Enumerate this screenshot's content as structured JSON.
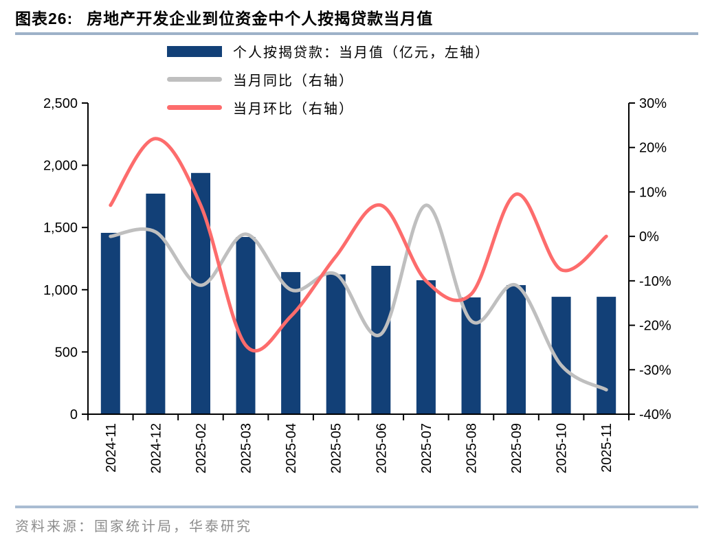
{
  "figure": {
    "number_label": "图表26:",
    "title": "房地产开发企业到位资金中个人按揭贷款当月值"
  },
  "legend": {
    "position": "top",
    "items": [
      {
        "label": "个人按揭贷款：当月值（亿元，左轴）",
        "type": "bar",
        "color": "#124077"
      },
      {
        "label": "当月同比（右轴）",
        "type": "line",
        "color": "#BFBFBF"
      },
      {
        "label": "当月环比（右轴）",
        "type": "line",
        "color": "#FD6C6C"
      }
    ]
  },
  "source": {
    "text": "资料来源：国家统计局，华泰研究"
  },
  "colors": {
    "bar": "#124077",
    "yoy_line": "#BFBFBF",
    "mom_line": "#FD6C6C",
    "axis": "#000000",
    "title_rule": "#9DB1C8",
    "footer_rule": "#A9BCD2",
    "source_text": "#8C8C8C"
  },
  "chart_data": {
    "type": "bar",
    "subtype": "combo-bar-line",
    "title": "房地产开发企业到位资金中个人按揭贷款当月值",
    "categories": [
      "2024-11",
      "2024-12",
      "2025-02",
      "2025-03",
      "2025-04",
      "2025-05",
      "2025-06",
      "2025-07",
      "2025-08",
      "2025-09",
      "2025-10",
      "2025-11"
    ],
    "series": [
      {
        "name": "个人按揭贷款：当月值（亿元，左轴）",
        "type": "bar",
        "axis": "left",
        "unit": "亿元",
        "color": "#124077",
        "values": [
          1457,
          1772,
          1938,
          1424,
          1142,
          1123,
          1192,
          1076,
          938,
          1037,
          943,
          943
        ]
      },
      {
        "name": "当月同比（右轴）",
        "type": "line",
        "axis": "right",
        "unit": "%",
        "color": "#BFBFBF",
        "values": [
          0,
          1,
          -11,
          0.5,
          -12,
          -8.5,
          -22,
          7,
          -19,
          -11,
          -29,
          -34.5
        ]
      },
      {
        "name": "当月环比（右轴）",
        "type": "line",
        "axis": "right",
        "unit": "%",
        "color": "#FD6C6C",
        "values": [
          7,
          22,
          7,
          -24.5,
          -18,
          -4.5,
          7,
          -10,
          -13,
          9.5,
          -7.5,
          0
        ]
      }
    ],
    "left_axis": {
      "min": 0,
      "max": 2500,
      "tick_values": [
        0,
        500,
        1000,
        1500,
        2000,
        2500
      ],
      "tick_labels": [
        "0",
        "500",
        "1,000",
        "1,500",
        "2,000",
        "2,500"
      ]
    },
    "right_axis": {
      "min": -40,
      "max": 30,
      "tick_values": [
        -40,
        -30,
        -20,
        -10,
        0,
        10,
        20,
        30
      ],
      "tick_labels": [
        "-40%",
        "-30%",
        "-20%",
        "-10%",
        "0%",
        "10%",
        "20%",
        "30%"
      ]
    },
    "grid": false,
    "legend_position": "top",
    "x_tick_label_rotation": 90
  }
}
